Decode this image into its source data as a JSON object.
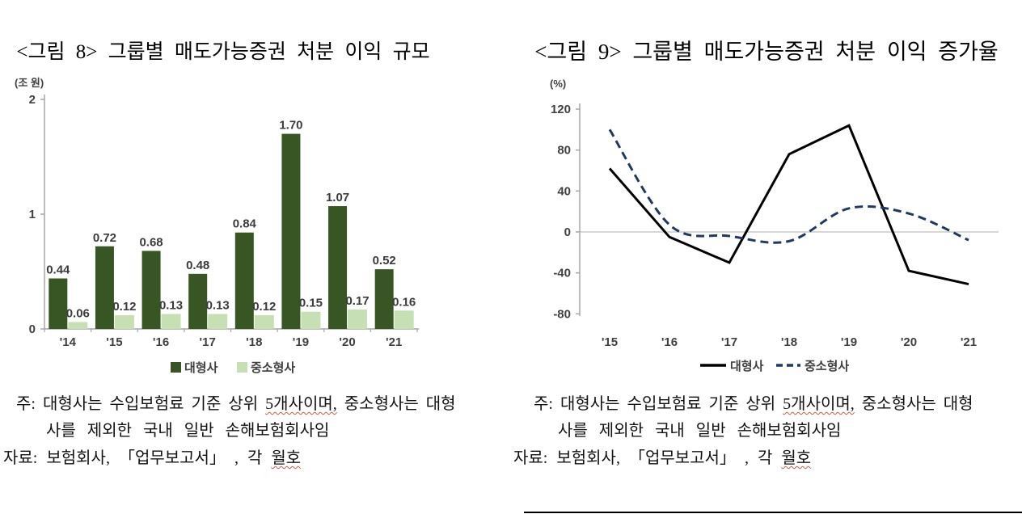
{
  "figure8": {
    "title": "<그림 8> 그룹별 매도가능증권 처분 이익 규모",
    "unit": "(조 원)"
  },
  "figure9": {
    "title": "<그림 9> 그룹별 매도가능증권 처분 이익 증가율",
    "unit": "(%)"
  },
  "notes": {
    "line1_parts": [
      "주: 대형사는 수입보험료 기준 상위 ",
      "5개사이며,",
      " 중소형사는 대형"
    ],
    "line2": "사를 제외한 국내 일반 손해보험회사임",
    "line3_parts": [
      "자료: 보험회사, 「업무보고서」 , 각 ",
      "월호"
    ]
  },
  "colors": {
    "bar_dark_green": "#375623",
    "bar_light_green": "#c6e0b4",
    "line_solid_black": "#000000",
    "line_dashed_navy": "#1f3864",
    "axis_gray": "#a6a6a6",
    "zero_line_gray": "#bfbfbf",
    "tick_text": "#404040",
    "spellcheck_red": "#cf5b42"
  },
  "chart_data": [
    {
      "type": "bar",
      "title": "<그림 8> 그룹별 매도가능증권 처분 이익 규모",
      "unit": "(조 원)",
      "categories": [
        "'14",
        "'15",
        "'16",
        "'17",
        "'18",
        "'19",
        "'20",
        "'21"
      ],
      "series": [
        {
          "name": "대형사",
          "color": "#375623",
          "values": [
            0.44,
            0.72,
            0.68,
            0.48,
            0.84,
            1.7,
            1.07,
            0.52
          ]
        },
        {
          "name": "중소형사",
          "color": "#c6e0b4",
          "values": [
            0.06,
            0.12,
            0.13,
            0.13,
            0.12,
            0.15,
            0.17,
            0.16
          ]
        }
      ],
      "ylim": [
        0,
        2
      ],
      "yticks": [
        2,
        1,
        0
      ],
      "grid": false,
      "data_labels": true,
      "legend_position": "bottom"
    },
    {
      "type": "line",
      "title": "<그림 9> 그룹별 매도가능증권 처분 이익 증가율",
      "unit": "(%)",
      "categories": [
        "'15",
        "'16",
        "'17",
        "'18",
        "'19",
        "'20",
        "'21"
      ],
      "series": [
        {
          "name": "대형사",
          "color": "#000000",
          "style": "solid",
          "smooth": false,
          "values": [
            62,
            -5,
            -30,
            76,
            104,
            -38,
            -51
          ]
        },
        {
          "name": "중소형사",
          "color": "#1f3864",
          "style": "dashed",
          "smooth": true,
          "values": [
            100,
            7,
            -4,
            -9,
            23,
            18,
            -8
          ]
        }
      ],
      "ylim": [
        -80,
        120
      ],
      "yticks": [
        120,
        80,
        40,
        0,
        -40,
        -80
      ],
      "zero_line": true,
      "grid": false,
      "legend_position": "bottom"
    }
  ]
}
